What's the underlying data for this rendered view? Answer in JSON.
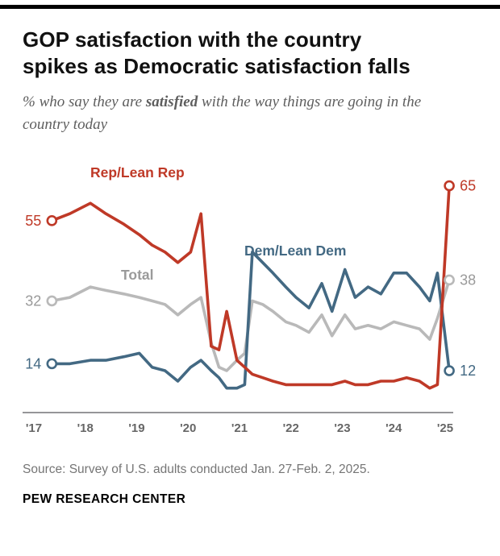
{
  "header": {
    "title_lines": [
      "GOP satisfaction with the country",
      "spikes as Democratic satisfaction falls"
    ],
    "subtitle": {
      "pre": "% who say they are ",
      "bold": "satisfied",
      "post": " with the way things are going in the country today"
    }
  },
  "chart_data": {
    "type": "line",
    "title": "GOP satisfaction with the country spikes as Democratic satisfaction falls",
    "subtitle": "% who say they are satisfied with the way things are going in the country today",
    "ylim": [
      0,
      70
    ],
    "grid": false,
    "legend_position": "inline-labels",
    "x_ticks": [
      {
        "year": 2017,
        "label": "'17"
      },
      {
        "year": 2018,
        "label": "'18"
      },
      {
        "year": 2019,
        "label": "'19"
      },
      {
        "year": 2020,
        "label": "'20"
      },
      {
        "year": 2021,
        "label": "'21"
      },
      {
        "year": 2022,
        "label": "'22"
      },
      {
        "year": 2023,
        "label": "'23"
      },
      {
        "year": 2024,
        "label": "'24"
      },
      {
        "year": 2025,
        "label": "'25"
      }
    ],
    "x": [
      2017.35,
      2017.7,
      2018.1,
      2018.4,
      2018.75,
      2019.05,
      2019.3,
      2019.55,
      2019.8,
      2020.05,
      2020.25,
      2020.45,
      2020.6,
      2020.75,
      2020.95,
      2021.1,
      2021.25,
      2021.45,
      2021.65,
      2021.9,
      2022.1,
      2022.35,
      2022.6,
      2022.8,
      2023.05,
      2023.25,
      2023.5,
      2023.75,
      2024.0,
      2024.25,
      2024.5,
      2024.7,
      2024.85,
      2025.08
    ],
    "series": [
      {
        "id": "total",
        "name": "Total",
        "color": "#b9b9b9",
        "label_color": "#9a9a9a",
        "start_value": 32,
        "end_value": 38,
        "x": [
          2017.35,
          2017.7,
          2018.1,
          2018.4,
          2018.75,
          2019.05,
          2019.3,
          2019.55,
          2019.8,
          2020.05,
          2020.25,
          2020.45,
          2020.6,
          2020.75,
          2020.95,
          2021.1,
          2021.25,
          2021.45,
          2021.65,
          2021.9,
          2022.1,
          2022.35,
          2022.6,
          2022.8,
          2023.05,
          2023.25,
          2023.5,
          2023.75,
          2024.0,
          2024.25,
          2024.5,
          2024.7,
          2024.85,
          2025.08
        ],
        "values": [
          32,
          33,
          36,
          35,
          34,
          33,
          32,
          31,
          28,
          31,
          33,
          20,
          13,
          12,
          15,
          17,
          32,
          31,
          29,
          26,
          25,
          23,
          28,
          22,
          28,
          24,
          25,
          24,
          26,
          25,
          24,
          21,
          27,
          38
        ]
      },
      {
        "id": "dem",
        "name": "Dem/Lean Dem",
        "color": "#436983",
        "label_color": "#436983",
        "start_value": 14,
        "end_value": 12,
        "x": [
          2017.35,
          2017.7,
          2018.1,
          2018.4,
          2018.75,
          2019.05,
          2019.3,
          2019.55,
          2019.8,
          2020.05,
          2020.25,
          2020.45,
          2020.6,
          2020.75,
          2020.95,
          2021.1,
          2021.25,
          2021.45,
          2021.65,
          2021.9,
          2022.1,
          2022.35,
          2022.6,
          2022.8,
          2023.05,
          2023.25,
          2023.5,
          2023.75,
          2024.0,
          2024.25,
          2024.5,
          2024.7,
          2024.85,
          2025.08
        ],
        "values": [
          14,
          14,
          15,
          15,
          16,
          17,
          13,
          12,
          9,
          13,
          15,
          12,
          10,
          7,
          7,
          8,
          46,
          43,
          40,
          36,
          33,
          30,
          37,
          29,
          41,
          33,
          36,
          34,
          40,
          40,
          36,
          32,
          40,
          12
        ]
      },
      {
        "id": "rep",
        "name": "Rep/Lean Rep",
        "color": "#bf3927",
        "label_color": "#bf3927",
        "start_value": 55,
        "end_value": 65,
        "x": [
          2017.35,
          2017.7,
          2018.1,
          2018.4,
          2018.75,
          2019.05,
          2019.3,
          2019.55,
          2019.8,
          2020.05,
          2020.25,
          2020.45,
          2020.6,
          2020.75,
          2020.95,
          2021.1,
          2021.25,
          2021.45,
          2021.65,
          2021.9,
          2022.1,
          2022.35,
          2022.6,
          2022.8,
          2023.05,
          2023.25,
          2023.5,
          2023.75,
          2024.0,
          2024.25,
          2024.5,
          2024.7,
          2024.85,
          2025.08
        ],
        "values": [
          55,
          57,
          60,
          57,
          54,
          51,
          48,
          46,
          43,
          46,
          57,
          19,
          18,
          29,
          15,
          13,
          11,
          10,
          9,
          8,
          8,
          8,
          8,
          8,
          9,
          8,
          8,
          9,
          9,
          10,
          9,
          7,
          8,
          65
        ]
      }
    ]
  },
  "footer": {
    "source": "Source: Survey of U.S. adults conducted Jan. 27-Feb. 2, 2025.",
    "brand": "PEW RESEARCH CENTER"
  }
}
